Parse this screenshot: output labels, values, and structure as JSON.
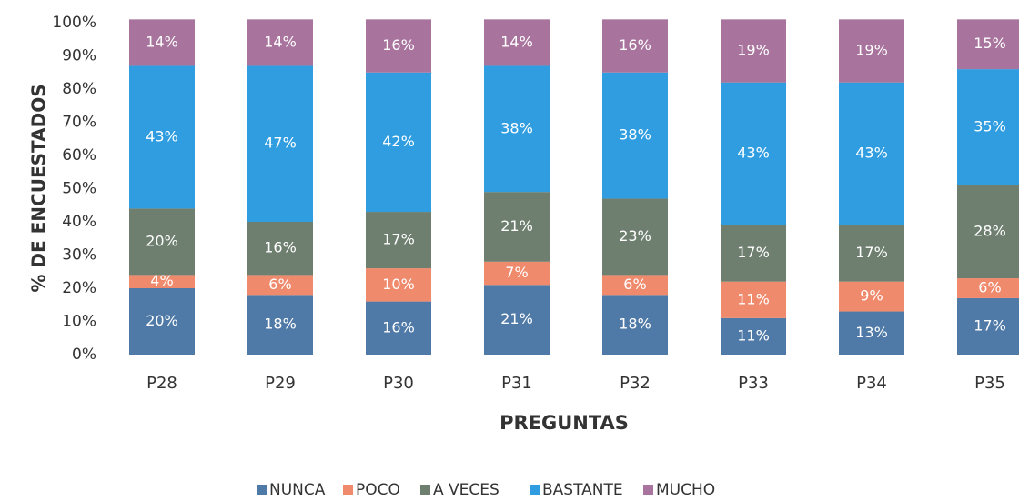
{
  "chart_data": {
    "type": "stacked_bar",
    "x_label": "PREGUNTAS",
    "y_label": "% DE ENCUESTADOS",
    "categories": [
      "P28",
      "P29",
      "P30",
      "P31",
      "P32",
      "P33",
      "P34",
      "P35"
    ],
    "series": [
      {
        "name": "NUNCA",
        "color": "#4f79a6",
        "values": [
          20,
          18,
          16,
          21,
          18,
          11,
          13,
          17
        ],
        "value_labels": [
          "20%",
          "18%",
          "16%",
          "21%",
          "18%",
          "11%",
          "13%",
          "17%"
        ]
      },
      {
        "name": "POCO",
        "color": "#f08a6c",
        "values": [
          4,
          6,
          10,
          7,
          6,
          11,
          9,
          6
        ],
        "value_labels": [
          "4%",
          "6%",
          "10%",
          "7%",
          "6%",
          "11%",
          "9%",
          "6%"
        ]
      },
      {
        "name": "A VECES",
        "color": "#6e7f6f",
        "values": [
          20,
          16,
          17,
          21,
          23,
          17,
          17,
          28
        ],
        "value_labels": [
          "20%",
          "16%",
          "17%",
          "21%",
          "23%",
          "17%",
          "17%",
          "28%"
        ]
      },
      {
        "name": "BASTANTE",
        "color": "#2f9de0",
        "values": [
          43,
          47,
          42,
          38,
          38,
          43,
          43,
          35
        ],
        "value_labels": [
          "43%",
          "47%",
          "42%",
          "38%",
          "38%",
          "43%",
          "43%",
          "35%"
        ]
      },
      {
        "name": "MUCHO",
        "color": "#a8739d",
        "values": [
          14,
          14,
          16,
          14,
          16,
          19,
          19,
          15
        ],
        "value_labels": [
          "14%",
          "14%",
          "16%",
          "14%",
          "16%",
          "19%",
          "19%",
          "15%"
        ]
      }
    ],
    "ylim": [
      0,
      100
    ],
    "yticks": [
      {
        "value": 0,
        "label": "0%"
      },
      {
        "value": 10,
        "label": "10%"
      },
      {
        "value": 20,
        "label": "20%"
      },
      {
        "value": 30,
        "label": "30%"
      },
      {
        "value": 40,
        "label": "40%"
      },
      {
        "value": 50,
        "label": "50%"
      },
      {
        "value": 60,
        "label": "60%"
      },
      {
        "value": 70,
        "label": "70%"
      },
      {
        "value": 80,
        "label": "80%"
      },
      {
        "value": 90,
        "label": "90%"
      },
      {
        "value": 100,
        "label": "100%"
      }
    ],
    "grid": false,
    "legend": "bottom"
  }
}
